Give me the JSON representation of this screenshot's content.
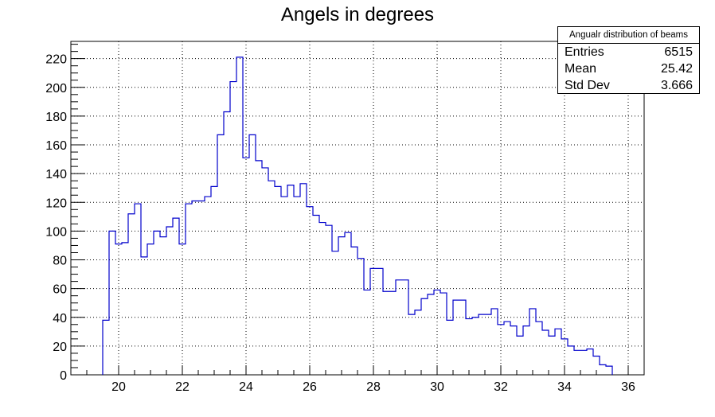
{
  "chart_data": {
    "type": "histogram",
    "title": "Angels in degrees",
    "xlabel": "",
    "ylabel": "",
    "xlim": [
      18.5,
      36.5
    ],
    "ylim": [
      0,
      232
    ],
    "x_ticks": [
      20,
      22,
      24,
      26,
      28,
      30,
      32,
      34,
      36
    ],
    "y_ticks": [
      0,
      20,
      40,
      60,
      80,
      100,
      120,
      140,
      160,
      180,
      200,
      220
    ],
    "grid": true,
    "line_color": "#0000cc",
    "bin_start": 19.5,
    "bin_width": 0.2,
    "counts": [
      38,
      100,
      91,
      92,
      112,
      119,
      82,
      91,
      100,
      96,
      103,
      109,
      91,
      119,
      121,
      121,
      124,
      131,
      167,
      183,
      204,
      221,
      151,
      167,
      149,
      144,
      135,
      131,
      124,
      132,
      124,
      133,
      117,
      111,
      106,
      104,
      86,
      96,
      99,
      89,
      81,
      59,
      74,
      74,
      58,
      58,
      66,
      66,
      42,
      45,
      53,
      56,
      59,
      57,
      38,
      52,
      52,
      39,
      40,
      42,
      42,
      46,
      35,
      37,
      34,
      27,
      34,
      46,
      37,
      31,
      27,
      32,
      25,
      20,
      17,
      17,
      18,
      13,
      7,
      6
    ],
    "stats": {
      "name": "Angualr distribution of beams",
      "entries_label": "Entries",
      "entries": "6515",
      "mean_label": "Mean",
      "mean": "25.42",
      "stddev_label": "Std Dev",
      "stddev": "3.666"
    }
  }
}
